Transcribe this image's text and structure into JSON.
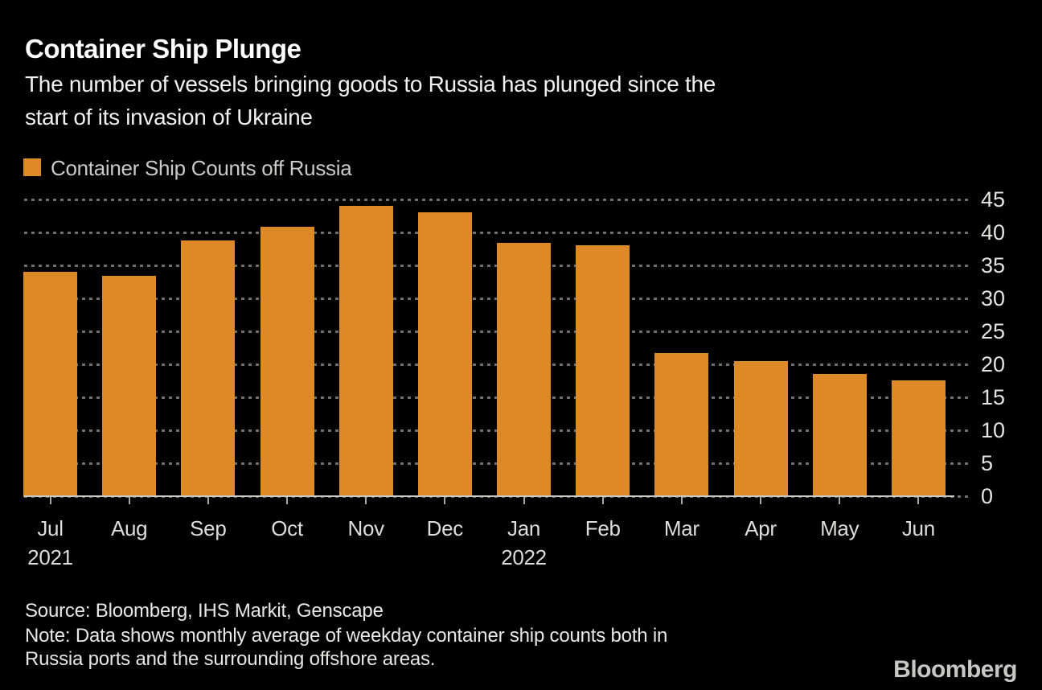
{
  "header": {
    "title": "Container Ship Plunge",
    "subtitle_lines": [
      "The number of vessels bringing goods to Russia has plunged since the",
      "start of its invasion of Ukraine"
    ]
  },
  "legend": {
    "label": "Container Ship Counts off Russia",
    "swatch_color": "#DE8927"
  },
  "chart_data": {
    "type": "bar",
    "title": "Container Ship Plunge",
    "series_name": "Container Ship Counts off Russia",
    "categories": [
      "Jul",
      "Aug",
      "Sep",
      "Oct",
      "Nov",
      "Dec",
      "Jan",
      "Feb",
      "Mar",
      "Apr",
      "May",
      "Jun"
    ],
    "sub_labels": [
      "2021",
      "",
      "",
      "",
      "",
      "",
      "2022",
      "",
      "",
      "",
      "",
      ""
    ],
    "values": [
      34.1,
      33.5,
      38.9,
      41.0,
      44.1,
      43.2,
      38.5,
      38.2,
      21.8,
      20.6,
      18.6,
      17.7
    ],
    "yticks": [
      0,
      5,
      10,
      15,
      20,
      25,
      30,
      35,
      40,
      45
    ],
    "ylim": [
      0,
      45
    ],
    "xlabel": "",
    "ylabel": "",
    "grid": "horizontal-dotted",
    "legend_position": "top-left",
    "bar_color": "#DE8927",
    "background_color": "#000000",
    "grid_color": "#6F6F6F",
    "axis_line_color": "#C9C7C2"
  },
  "footer": {
    "source": "Source: Bloomberg, IHS Markit, Genscape",
    "note_lines": [
      "Note: Data shows monthly average of weekday container ship counts both in",
      "Russia ports and the surrounding offshore areas."
    ],
    "brand": "Bloomberg"
  }
}
